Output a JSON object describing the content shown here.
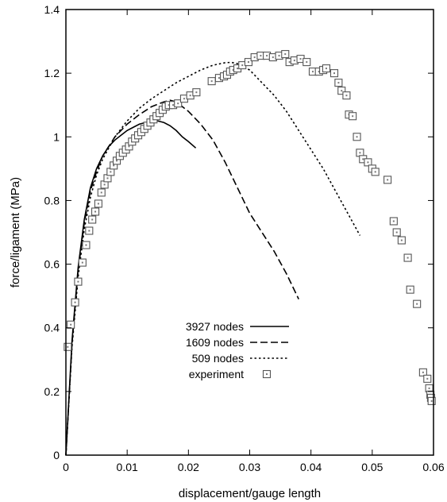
{
  "chart_data": {
    "type": "line",
    "title": "",
    "xlabel": "displacement/gauge length",
    "ylabel": "force/ligament (MPa)",
    "xlim": [
      0,
      0.06
    ],
    "ylim": [
      0,
      1.4
    ],
    "x_ticks": [
      "0",
      "0.01",
      "0.02",
      "0.03",
      "0.04",
      "0.05",
      "0.06"
    ],
    "y_ticks": [
      "0",
      "0.2",
      "0.4",
      "0.6",
      "0.8",
      "1",
      "1.2",
      "1.4"
    ],
    "legend_position": "center",
    "series": [
      {
        "name": "3927 nodes",
        "style": "solid",
        "x": [
          0,
          0.001,
          0.002,
          0.003,
          0.004,
          0.005,
          0.006,
          0.007,
          0.008,
          0.009,
          0.01,
          0.011,
          0.012,
          0.013,
          0.014,
          0.015,
          0.016,
          0.017,
          0.018,
          0.019,
          0.02,
          0.0212
        ],
        "y": [
          0,
          0.36,
          0.59,
          0.74,
          0.84,
          0.9,
          0.94,
          0.97,
          0.99,
          1.005,
          1.02,
          1.03,
          1.04,
          1.045,
          1.048,
          1.05,
          1.045,
          1.035,
          1.02,
          1.0,
          0.985,
          0.965
        ]
      },
      {
        "name": "1609 nodes",
        "style": "dashed",
        "x": [
          0,
          0.001,
          0.002,
          0.003,
          0.004,
          0.005,
          0.006,
          0.008,
          0.01,
          0.012,
          0.014,
          0.016,
          0.017,
          0.018,
          0.02,
          0.022,
          0.024,
          0.026,
          0.028,
          0.03,
          0.032,
          0.034,
          0.036,
          0.038
        ],
        "y": [
          0,
          0.35,
          0.58,
          0.73,
          0.83,
          0.89,
          0.94,
          1.0,
          1.04,
          1.07,
          1.095,
          1.11,
          1.115,
          1.11,
          1.08,
          1.04,
          0.99,
          0.92,
          0.84,
          0.76,
          0.7,
          0.64,
          0.57,
          0.49
        ]
      },
      {
        "name": "509 nodes",
        "style": "dotted",
        "x": [
          0,
          0.001,
          0.002,
          0.003,
          0.004,
          0.005,
          0.006,
          0.008,
          0.01,
          0.012,
          0.014,
          0.016,
          0.018,
          0.02,
          0.022,
          0.024,
          0.026,
          0.027,
          0.028,
          0.03,
          0.032,
          0.034,
          0.036,
          0.038,
          0.04,
          0.042,
          0.044,
          0.046,
          0.048
        ],
        "y": [
          0,
          0.34,
          0.56,
          0.71,
          0.81,
          0.88,
          0.93,
          1.0,
          1.05,
          1.09,
          1.12,
          1.145,
          1.17,
          1.19,
          1.21,
          1.225,
          1.233,
          1.234,
          1.23,
          1.21,
          1.17,
          1.13,
          1.08,
          1.02,
          0.96,
          0.9,
          0.83,
          0.76,
          0.69
        ]
      },
      {
        "name": "experiment",
        "style": "markers",
        "x": [
          0.0003,
          0.0008,
          0.0015,
          0.002,
          0.0027,
          0.0033,
          0.0038,
          0.0043,
          0.0048,
          0.0053,
          0.0058,
          0.0063,
          0.0068,
          0.0073,
          0.0078,
          0.0083,
          0.0088,
          0.0093,
          0.0098,
          0.0103,
          0.0108,
          0.0113,
          0.0118,
          0.0123,
          0.0128,
          0.0133,
          0.0138,
          0.0143,
          0.0148,
          0.0153,
          0.0158,
          0.0163,
          0.0168,
          0.0175,
          0.0183,
          0.0193,
          0.0203,
          0.0213,
          0.0238,
          0.025,
          0.0258,
          0.0263,
          0.0268,
          0.0273,
          0.028,
          0.0288,
          0.0298,
          0.0308,
          0.0318,
          0.0328,
          0.0338,
          0.0348,
          0.0358,
          0.0365,
          0.0373,
          0.0383,
          0.0393,
          0.0403,
          0.0413,
          0.042,
          0.0425,
          0.0438,
          0.0445,
          0.045,
          0.0458,
          0.0462,
          0.0468,
          0.0475,
          0.048,
          0.0485,
          0.0493,
          0.05,
          0.0505,
          0.0525,
          0.0535,
          0.054,
          0.0548,
          0.0558,
          0.0562,
          0.0573,
          0.0583,
          0.059,
          0.0593,
          0.0595,
          0.0596,
          0.0597
        ],
        "y": [
          0.34,
          0.41,
          0.48,
          0.545,
          0.605,
          0.66,
          0.705,
          0.74,
          0.765,
          0.79,
          0.825,
          0.85,
          0.87,
          0.89,
          0.91,
          0.925,
          0.94,
          0.95,
          0.96,
          0.97,
          0.985,
          0.995,
          1.005,
          1.015,
          1.025,
          1.035,
          1.045,
          1.055,
          1.065,
          1.075,
          1.085,
          1.095,
          1.1,
          1.1,
          1.105,
          1.12,
          1.13,
          1.14,
          1.175,
          1.185,
          1.19,
          1.195,
          1.205,
          1.21,
          1.215,
          1.225,
          1.235,
          1.25,
          1.255,
          1.255,
          1.25,
          1.255,
          1.26,
          1.235,
          1.24,
          1.245,
          1.235,
          1.205,
          1.205,
          1.21,
          1.215,
          1.2,
          1.17,
          1.145,
          1.13,
          1.07,
          1.065,
          1.0,
          0.95,
          0.93,
          0.92,
          0.9,
          0.89,
          0.865,
          0.735,
          0.7,
          0.675,
          0.62,
          0.52,
          0.475,
          0.26,
          0.24,
          0.21,
          0.19,
          0.18,
          0.17
        ]
      }
    ]
  }
}
